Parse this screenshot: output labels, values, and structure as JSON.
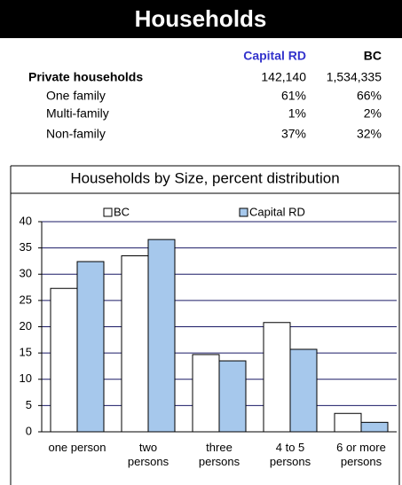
{
  "header": {
    "title": "Households"
  },
  "table": {
    "columns": [
      "Capital RD",
      "BC"
    ],
    "rows": [
      [
        "Private households",
        "142,140",
        "1,534,335"
      ],
      [
        "One family",
        "61%",
        "66%"
      ],
      [
        "Multi-family",
        "1%",
        "2%"
      ],
      [
        "Non-family",
        "37%",
        "32%"
      ]
    ]
  },
  "chart_data": {
    "type": "bar",
    "title": "Households by Size, percent distribution",
    "categories": [
      "one person",
      "two persons",
      "three persons",
      "4 to 5 persons",
      "6 or  more persons"
    ],
    "series": [
      {
        "name": "BC",
        "color": "#ffffff",
        "values": [
          27.3,
          33.5,
          14.7,
          20.8,
          3.5
        ]
      },
      {
        "name": "Capital RD",
        "color": "#a6c8ec",
        "values": [
          32.4,
          36.6,
          13.5,
          15.7,
          1.8
        ]
      }
    ],
    "ylim": [
      0,
      40
    ],
    "yticks": [
      0,
      5,
      10,
      15,
      20,
      25,
      30,
      35,
      40
    ],
    "grid": true,
    "legend": "top"
  }
}
